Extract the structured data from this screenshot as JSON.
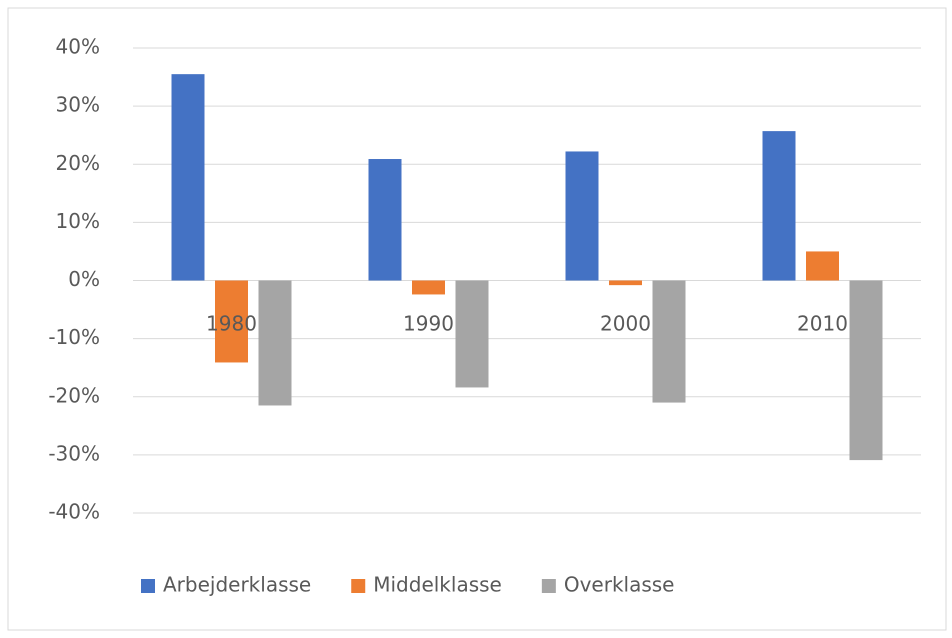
{
  "chart_data": {
    "type": "bar",
    "categories": [
      "1980",
      "1990",
      "2000",
      "2010"
    ],
    "series": [
      {
        "name": "Arbejderklasse",
        "color": "#4472c4",
        "values": [
          35.5,
          20.9,
          22.2,
          25.7
        ]
      },
      {
        "name": "Middelklasse",
        "color": "#ed7d31",
        "values": [
          -14.1,
          -2.4,
          -0.8,
          5
        ]
      },
      {
        "name": "Overklasse",
        "color": "#a5a5a5",
        "values": [
          -21.5,
          -18.4,
          -21,
          -30.9
        ]
      }
    ],
    "ylim": [
      -40,
      40
    ],
    "yticks": [
      {
        "value": -40,
        "label": "-40%"
      },
      {
        "value": -30,
        "label": "-30%"
      },
      {
        "value": -20,
        "label": "-20%"
      },
      {
        "value": -10,
        "label": "-10%"
      },
      {
        "value": 0,
        "label": "0%"
      },
      {
        "value": 10,
        "label": "10%"
      },
      {
        "value": 20,
        "label": "20%"
      },
      {
        "value": 30,
        "label": "30%"
      },
      {
        "value": 40,
        "label": "40%"
      }
    ],
    "grid": true,
    "legend": "bottom"
  }
}
